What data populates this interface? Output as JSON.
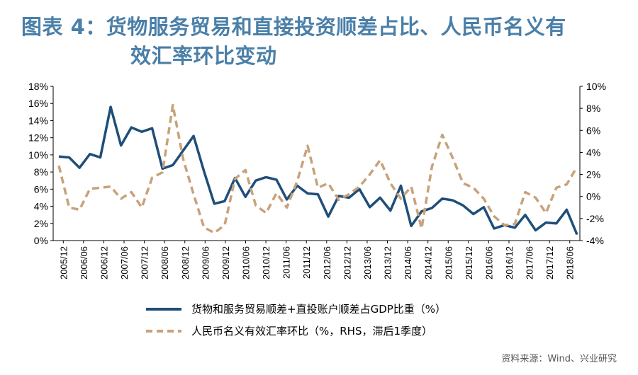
{
  "title": {
    "line1": "图表 4：货物服务贸易和直接投资顺差占比、人民币名义有",
    "line2": "效汇率环比变动"
  },
  "source": "资料来源：Wind、兴业研究",
  "colors": {
    "series1": "#1f4e79",
    "series2": "#c8a27a"
  },
  "chart_data": {
    "type": "line",
    "x_tick_labels": [
      "2005/12",
      "2006/06",
      "2006/12",
      "2007/06",
      "2007/12",
      "2008/06",
      "2008/12",
      "2009/06",
      "2009/12",
      "2010/06",
      "2010/12",
      "2011/06",
      "2011/12",
      "2012/06",
      "2012/12",
      "2013/06",
      "2013/12",
      "2014/06",
      "2014/12",
      "2015/06",
      "2015/12",
      "2016/06",
      "2016/12",
      "2017/06",
      "2017/12",
      "2018/06"
    ],
    "y_left": {
      "ticks": [
        "0%",
        "2%",
        "4%",
        "6%",
        "8%",
        "10%",
        "12%",
        "14%",
        "16%",
        "18%"
      ],
      "range": [
        0,
        18
      ]
    },
    "y_right": {
      "ticks": [
        "-4%",
        "-2%",
        "0%",
        "2%",
        "4%",
        "6%",
        "8%",
        "10%"
      ],
      "range": [
        -4,
        10
      ]
    },
    "series": [
      {
        "name": "货物和服务贸易顺差+直投账户顺差占GDP比重（%）",
        "axis": "left",
        "style": "solid",
        "values": [
          9.8,
          9.7,
          8.5,
          10.1,
          9.7,
          15.6,
          11.1,
          13.2,
          12.7,
          13.1,
          8.4,
          8.8,
          10.5,
          12.2,
          8.1,
          4.3,
          4.6,
          7.3,
          5.1,
          7.0,
          7.4,
          7.1,
          4.8,
          6.4,
          5.5,
          5.4,
          2.8,
          5.2,
          5.0,
          6.0,
          3.9,
          5.0,
          3.5,
          6.4,
          1.7,
          3.4,
          3.8,
          4.9,
          4.7,
          4.1,
          3.1,
          3.9,
          1.4,
          1.8,
          1.5,
          3.0,
          1.2,
          2.1,
          2.0,
          3.6,
          0.7
        ]
      },
      {
        "name": "人民币名义有效汇率环比（%，RHS，滞后1季度）",
        "axis": "right",
        "style": "dashed",
        "values": [
          2.8,
          -1.0,
          -1.2,
          0.7,
          0.8,
          0.9,
          -0.2,
          0.4,
          -1.0,
          1.7,
          2.2,
          8.3,
          3.4,
          0.2,
          -2.8,
          -3.3,
          -2.6,
          1.6,
          2.4,
          -0.8,
          -1.5,
          0.3,
          -1.0,
          1.4,
          4.6,
          0.8,
          1.2,
          -0.3,
          0.2,
          0.9,
          2.0,
          3.3,
          1.2,
          -0.2,
          0.9,
          -2.9,
          2.7,
          5.6,
          3.5,
          1.2,
          0.8,
          -0.2,
          -1.8,
          -2.6,
          -2.5,
          0.4,
          -0.1,
          -1.5,
          0.8,
          1.1,
          2.7
        ]
      }
    ]
  }
}
